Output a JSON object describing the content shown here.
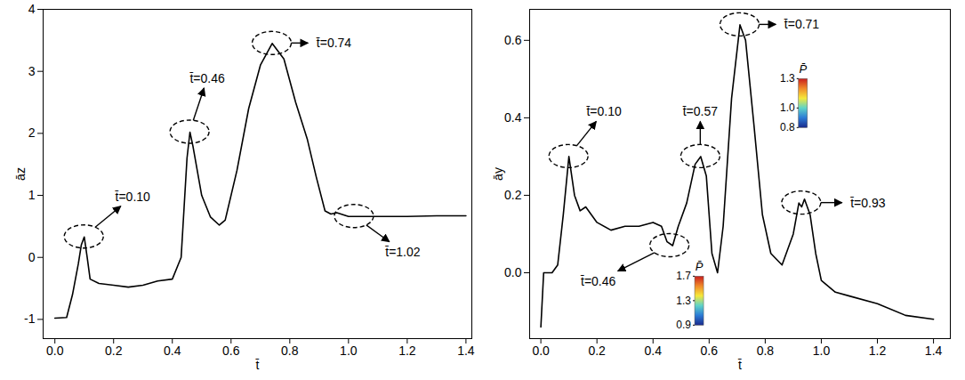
{
  "chart_data": [
    {
      "type": "line",
      "xlabel": "t̄",
      "ylabel": "āz",
      "color": "#000000",
      "xlim": [
        -0.04,
        1.42
      ],
      "ylim": [
        -1.31,
        4.0
      ],
      "xticks": [
        {
          "value": 0,
          "label": "0.0"
        },
        0.2,
        0.4,
        0.6,
        0.8,
        {
          "value": 1,
          "label": "1.0"
        },
        1.2,
        1.4
      ],
      "yticks": [
        -1,
        0,
        1,
        2,
        3,
        4
      ],
      "x": [
        0.0,
        0.04,
        0.06,
        0.08,
        0.09,
        0.1,
        0.11,
        0.12,
        0.15,
        0.2,
        0.25,
        0.3,
        0.35,
        0.4,
        0.43,
        0.44,
        0.45,
        0.46,
        0.47,
        0.5,
        0.53,
        0.56,
        0.58,
        0.62,
        0.66,
        0.7,
        0.74,
        0.78,
        0.82,
        0.86,
        0.89,
        0.92,
        0.94,
        0.96,
        1.0,
        1.1,
        1.2,
        1.3,
        1.4
      ],
      "values": [
        -0.98,
        -0.97,
        -0.6,
        -0.1,
        0.2,
        0.33,
        0.0,
        -0.35,
        -0.42,
        -0.45,
        -0.48,
        -0.45,
        -0.38,
        -0.35,
        0.0,
        0.8,
        1.6,
        2.02,
        1.8,
        1.0,
        0.65,
        0.52,
        0.6,
        1.4,
        2.4,
        3.1,
        3.45,
        3.2,
        2.5,
        1.9,
        1.3,
        0.75,
        0.7,
        0.72,
        0.66,
        0.66,
        0.66,
        0.67,
        0.67
      ],
      "annotations": [
        {
          "text": "t̄=0.10",
          "x": 0.1,
          "y": 0.33
        },
        {
          "text": "t̄=0.46",
          "x": 0.46,
          "y": 2.02
        },
        {
          "text": "t̄=0.74",
          "x": 0.74,
          "y": 3.45
        },
        {
          "text": "t̄=1.02",
          "x": 1.02,
          "y": 0.66
        }
      ]
    },
    {
      "type": "line",
      "xlabel": "t̄",
      "ylabel": "āy",
      "color": "#000000",
      "xlim": [
        -0.04,
        1.46
      ],
      "ylim": [
        -0.17,
        0.68
      ],
      "xticks": [
        {
          "value": 0,
          "label": "0.0"
        },
        0.2,
        0.4,
        0.6,
        0.8,
        {
          "value": 1,
          "label": "1.0"
        },
        1.2,
        1.4
      ],
      "yticks": [
        {
          "value": 0,
          "label": "0.0"
        },
        0.2,
        0.4,
        0.6
      ],
      "x": [
        0.0,
        0.01,
        0.04,
        0.06,
        0.08,
        0.1,
        0.12,
        0.14,
        0.16,
        0.2,
        0.25,
        0.3,
        0.35,
        0.4,
        0.43,
        0.45,
        0.47,
        0.49,
        0.52,
        0.55,
        0.57,
        0.59,
        0.61,
        0.63,
        0.65,
        0.68,
        0.71,
        0.73,
        0.76,
        0.79,
        0.82,
        0.86,
        0.9,
        0.92,
        0.93,
        0.94,
        0.96,
        0.98,
        1.0,
        1.05,
        1.1,
        1.2,
        1.3,
        1.4
      ],
      "values": [
        -0.14,
        0.0,
        0.0,
        0.02,
        0.15,
        0.3,
        0.2,
        0.16,
        0.17,
        0.13,
        0.11,
        0.12,
        0.12,
        0.13,
        0.12,
        0.08,
        0.07,
        0.12,
        0.18,
        0.28,
        0.3,
        0.25,
        0.05,
        0.0,
        0.12,
        0.45,
        0.64,
        0.6,
        0.38,
        0.15,
        0.05,
        0.02,
        0.1,
        0.18,
        0.17,
        0.19,
        0.15,
        0.05,
        -0.02,
        -0.05,
        -0.06,
        -0.08,
        -0.11,
        -0.12
      ],
      "annotations": [
        {
          "text": "t̄=0.10",
          "x": 0.1,
          "y": 0.3
        },
        {
          "text": "t̄=0.46",
          "x": 0.46,
          "y": 0.07
        },
        {
          "text": "t̄=0.57",
          "x": 0.57,
          "y": 0.3
        },
        {
          "text": "t̄=0.71",
          "x": 0.71,
          "y": 0.64
        },
        {
          "text": "t̄=0.93",
          "x": 0.93,
          "y": 0.18
        }
      ],
      "colorbars": [
        {
          "title": "P̄",
          "range": [
            0.8,
            1.3
          ],
          "ticks": [
            0.8,
            {
              "value": 1,
              "label": "1.0"
            },
            1.3
          ]
        },
        {
          "title": "P̄",
          "range": [
            0.9,
            1.7
          ],
          "ticks": [
            0.9,
            1.3,
            1.7
          ]
        }
      ]
    }
  ]
}
